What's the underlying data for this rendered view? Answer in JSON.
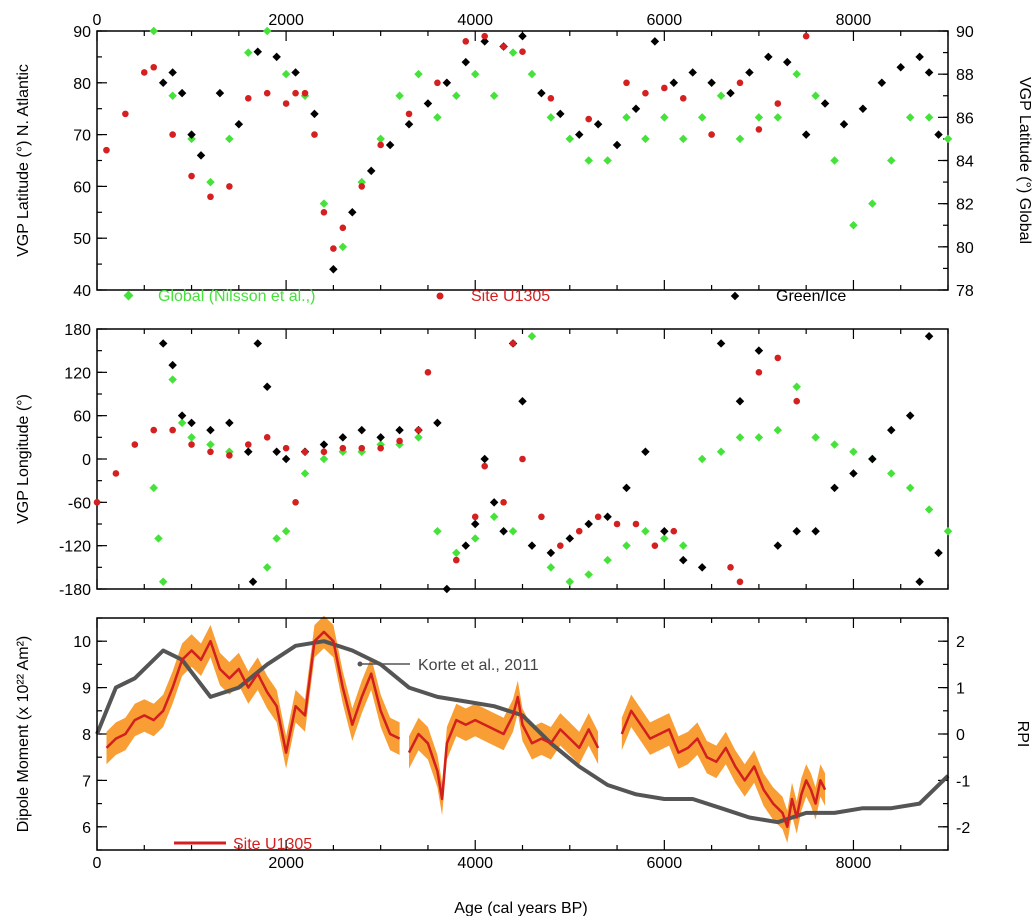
{
  "figure": {
    "x_axis_label": "Age (cal years BP)",
    "x_ticks": [
      0,
      2000,
      4000,
      6000,
      8000
    ],
    "x_range": [
      0,
      9000
    ]
  },
  "colors": {
    "global": "#45e23a",
    "site": "#d42020",
    "greenice": "#000000",
    "korte": "#555555",
    "band": "#f7931e",
    "site_line": "#d21f1f"
  },
  "chart_data": [
    {
      "type": "scatter",
      "panel": "top",
      "ylabel": "VGP Latitude (°) N. Atlantic",
      "ylabel_right": "VGP Latitude (°) Global",
      "ylim": [
        40,
        90
      ],
      "yticks": [
        40,
        50,
        60,
        70,
        80,
        90
      ],
      "ylim_right": [
        78,
        90
      ],
      "yticks_right": [
        78,
        80,
        82,
        84,
        86,
        88,
        90
      ],
      "xlim": [
        0,
        9000
      ],
      "legend": [
        "Global (Nilsson et al.,)",
        "Site U1305",
        "Green/Ice"
      ],
      "series": [
        {
          "name": "Site U1305",
          "x": [
            100,
            300,
            500,
            600,
            800,
            1000,
            1200,
            1400,
            1600,
            1800,
            2000,
            2100,
            2200,
            2300,
            2400,
            2500,
            2600,
            2800,
            3000,
            3300,
            3600,
            3900,
            4100,
            4300,
            4500,
            4800,
            5200,
            5600,
            5800,
            6000,
            6200,
            6500,
            6800,
            7000,
            7200,
            7500
          ],
          "y": [
            67,
            74,
            82,
            83,
            70,
            62,
            58,
            60,
            77,
            78,
            76,
            78,
            78,
            70,
            55,
            48,
            52,
            60,
            68,
            74,
            80,
            88,
            89,
            87,
            86,
            77,
            73,
            80,
            78,
            79,
            77,
            70,
            80,
            71,
            76,
            89
          ]
        },
        {
          "name": "Green/Ice",
          "x": [
            700,
            800,
            900,
            1000,
            1100,
            1300,
            1500,
            1700,
            1900,
            2100,
            2300,
            2500,
            2700,
            2900,
            3100,
            3300,
            3500,
            3700,
            3900,
            4100,
            4300,
            4500,
            4700,
            4900,
            5100,
            5300,
            5500,
            5700,
            5900,
            6100,
            6300,
            6500,
            6700,
            6900,
            7100,
            7300,
            7500,
            7700,
            7900,
            8100,
            8300,
            8500,
            8700,
            8800,
            8900
          ],
          "y": [
            80,
            82,
            78,
            70,
            66,
            78,
            72,
            86,
            85,
            82,
            74,
            44,
            55,
            63,
            68,
            72,
            76,
            80,
            84,
            88,
            87,
            89,
            78,
            74,
            70,
            72,
            68,
            75,
            88,
            80,
            82,
            80,
            78,
            82,
            85,
            84,
            70,
            76,
            72,
            75,
            80,
            83,
            85,
            82,
            70
          ]
        },
        {
          "name": "Global (Nilsson et al.,)",
          "axis": "right",
          "x": [
            600,
            800,
            1000,
            1200,
            1400,
            1600,
            1800,
            2000,
            2200,
            2400,
            2600,
            2800,
            3000,
            3200,
            3400,
            3600,
            3800,
            4000,
            4200,
            4400,
            4600,
            4800,
            5000,
            5200,
            5400,
            5600,
            5800,
            6000,
            6200,
            6400,
            6600,
            6800,
            7000,
            7200,
            7400,
            7600,
            7800,
            8000,
            8200,
            8400,
            8600,
            8800,
            9000
          ],
          "y": [
            90,
            87,
            85,
            83,
            85,
            89,
            90,
            88,
            87,
            82,
            80,
            83,
            85,
            87,
            88,
            86,
            87,
            88,
            87,
            89,
            88,
            86,
            85,
            84,
            84,
            86,
            85,
            86,
            85,
            86,
            87,
            85,
            86,
            86,
            88,
            87,
            84,
            81,
            82,
            84,
            86,
            86,
            85
          ]
        }
      ]
    },
    {
      "type": "scatter",
      "panel": "middle",
      "ylabel": "VGP Longitude (°)",
      "ylim": [
        -180,
        180
      ],
      "yticks": [
        -180,
        -120,
        -60,
        0,
        60,
        120,
        180
      ],
      "xlim": [
        0,
        9000
      ],
      "series": [
        {
          "name": "Site U1305",
          "x": [
            0,
            200,
            400,
            600,
            800,
            1000,
            1200,
            1400,
            1600,
            1800,
            2000,
            2100,
            2200,
            2400,
            2600,
            2800,
            3000,
            3200,
            3400,
            3500,
            3800,
            4000,
            4100,
            4300,
            4400,
            4500,
            4700,
            4900,
            5100,
            5300,
            5500,
            5700,
            5900,
            6100,
            6700,
            6800,
            7000,
            7200,
            7400
          ],
          "y": [
            -60,
            -20,
            20,
            40,
            40,
            20,
            10,
            5,
            20,
            30,
            15,
            -60,
            10,
            10,
            15,
            15,
            15,
            25,
            40,
            120,
            -140,
            -80,
            -10,
            -60,
            160,
            0,
            -80,
            -120,
            -100,
            -80,
            -90,
            -90,
            -120,
            -100,
            -150,
            -170,
            120,
            140,
            80
          ]
        },
        {
          "name": "Green/Ice",
          "x": [
            700,
            800,
            900,
            1000,
            1200,
            1400,
            1600,
            1650,
            1700,
            1800,
            1900,
            2000,
            2200,
            2400,
            2600,
            2800,
            3000,
            3200,
            3400,
            3600,
            3700,
            3900,
            4000,
            4100,
            4200,
            4300,
            4400,
            4500,
            4600,
            4800,
            5000,
            5200,
            5400,
            5600,
            5800,
            6000,
            6200,
            6400,
            6600,
            6800,
            7000,
            7200,
            7400,
            7600,
            7800,
            8000,
            8200,
            8400,
            8600,
            8700,
            8800,
            8900
          ],
          "y": [
            160,
            130,
            60,
            50,
            40,
            50,
            10,
            -170,
            160,
            100,
            10,
            0,
            10,
            20,
            30,
            40,
            30,
            40,
            40,
            50,
            -180,
            -120,
            -90,
            0,
            -60,
            -100,
            160,
            80,
            -120,
            -130,
            -110,
            -90,
            -80,
            -40,
            10,
            -100,
            -140,
            -150,
            160,
            80,
            150,
            -120,
            -100,
            -100,
            -40,
            -20,
            0,
            40,
            60,
            -170,
            170,
            -130
          ]
        },
        {
          "name": "Global (Nilsson et al.,)",
          "x": [
            600,
            650,
            700,
            800,
            900,
            1000,
            1200,
            1400,
            1600,
            1800,
            1900,
            2000,
            2200,
            2400,
            2600,
            2800,
            3000,
            3200,
            3400,
            3600,
            3800,
            4000,
            4200,
            4400,
            4600,
            4800,
            5000,
            5200,
            5400,
            5600,
            5800,
            6000,
            6200,
            6400,
            6600,
            6800,
            7000,
            7200,
            7400,
            7600,
            7800,
            8000,
            8200,
            8400,
            8600,
            8800,
            9000
          ],
          "y": [
            -40,
            -110,
            -170,
            110,
            50,
            30,
            20,
            10,
            10,
            -150,
            -110,
            -100,
            -20,
            0,
            10,
            10,
            20,
            20,
            30,
            -100,
            -130,
            -110,
            -80,
            -100,
            170,
            -150,
            -170,
            -160,
            -140,
            -120,
            -100,
            -110,
            -120,
            0,
            10,
            30,
            30,
            40,
            100,
            30,
            20,
            10,
            0,
            -20,
            -40,
            -70,
            -100
          ]
        }
      ]
    },
    {
      "type": "line",
      "panel": "bottom",
      "ylabel": "Dipole Moment  (x 10²² Am²)",
      "ylabel_right": "RPI",
      "ylim": [
        5.5,
        10.5
      ],
      "yticks": [
        6,
        7,
        8,
        9,
        10
      ],
      "ylim_right": [
        -2.5,
        2.5
      ],
      "yticks_right": [
        -2,
        -1,
        0,
        1,
        2
      ],
      "xlim": [
        0,
        9000
      ],
      "annotations": [
        "Korte et al., 2011",
        "Site U1305"
      ],
      "series": [
        {
          "name": "Korte et al., 2011",
          "x": [
            0,
            200,
            400,
            700,
            900,
            1200,
            1500,
            1800,
            2100,
            2400,
            2700,
            3000,
            3300,
            3600,
            3900,
            4200,
            4500,
            4800,
            5100,
            5400,
            5700,
            6000,
            6300,
            6600,
            6900,
            7200,
            7500,
            7800,
            8100,
            8400,
            8700,
            9000
          ],
          "y": [
            8.0,
            9.0,
            9.2,
            9.8,
            9.6,
            8.8,
            9.0,
            9.5,
            9.9,
            10.0,
            9.8,
            9.5,
            9.0,
            8.8,
            8.7,
            8.6,
            8.4,
            7.8,
            7.3,
            6.9,
            6.7,
            6.6,
            6.6,
            6.4,
            6.2,
            6.1,
            6.3,
            6.3,
            6.4,
            6.4,
            6.5,
            7.1
          ]
        },
        {
          "name": "Site U1305",
          "segments": [
            {
              "x": [
                100,
                200,
                300,
                400,
                500,
                600,
                700,
                800,
                900,
                1000,
                1100,
                1200,
                1300,
                1400,
                1500,
                1600,
                1700,
                1800,
                1900,
                2000,
                2100,
                2200,
                2300,
                2400,
                2500,
                2600,
                2700,
                2800,
                2900,
                3000,
                3100,
                3200
              ],
              "y": [
                7.7,
                7.9,
                8.0,
                8.3,
                8.4,
                8.3,
                8.5,
                9.0,
                9.6,
                9.8,
                9.6,
                10.0,
                9.4,
                9.2,
                9.4,
                9.0,
                9.3,
                8.9,
                8.6,
                7.6,
                8.6,
                8.4,
                10.0,
                10.2,
                10.0,
                9.0,
                8.2,
                8.8,
                9.3,
                8.5,
                8.0,
                7.9
              ]
            },
            {
              "x": [
                3300,
                3400,
                3500,
                3600,
                3650,
                3700,
                3800,
                3900,
                4000,
                4100,
                4200,
                4300,
                4400,
                4450,
                4500,
                4600,
                4700,
                4800,
                4900,
                5000,
                5100,
                5200,
                5300
              ],
              "y": [
                7.6,
                8.0,
                7.8,
                7.2,
                6.6,
                7.8,
                8.3,
                8.2,
                8.3,
                8.2,
                8.1,
                8.0,
                8.4,
                8.8,
                8.2,
                7.8,
                7.9,
                7.8,
                8.1,
                7.9,
                7.7,
                8.1,
                7.7
              ]
            },
            {
              "x": [
                5550,
                5650,
                5750,
                5850,
                5950,
                6050,
                6150,
                6250,
                6350,
                6450,
                6550,
                6650,
                6750,
                6850,
                6950,
                7050,
                7150,
                7250,
                7300,
                7350,
                7400,
                7450,
                7500,
                7550,
                7600,
                7650,
                7700
              ],
              "y": [
                8.0,
                8.5,
                8.2,
                7.9,
                8.0,
                8.1,
                7.6,
                7.7,
                7.9,
                7.5,
                7.4,
                7.7,
                7.3,
                7.0,
                7.3,
                6.8,
                6.5,
                6.3,
                6.0,
                6.6,
                6.2,
                6.7,
                7.0,
                6.8,
                6.5,
                7.0,
                6.8
              ]
            }
          ]
        }
      ]
    }
  ]
}
